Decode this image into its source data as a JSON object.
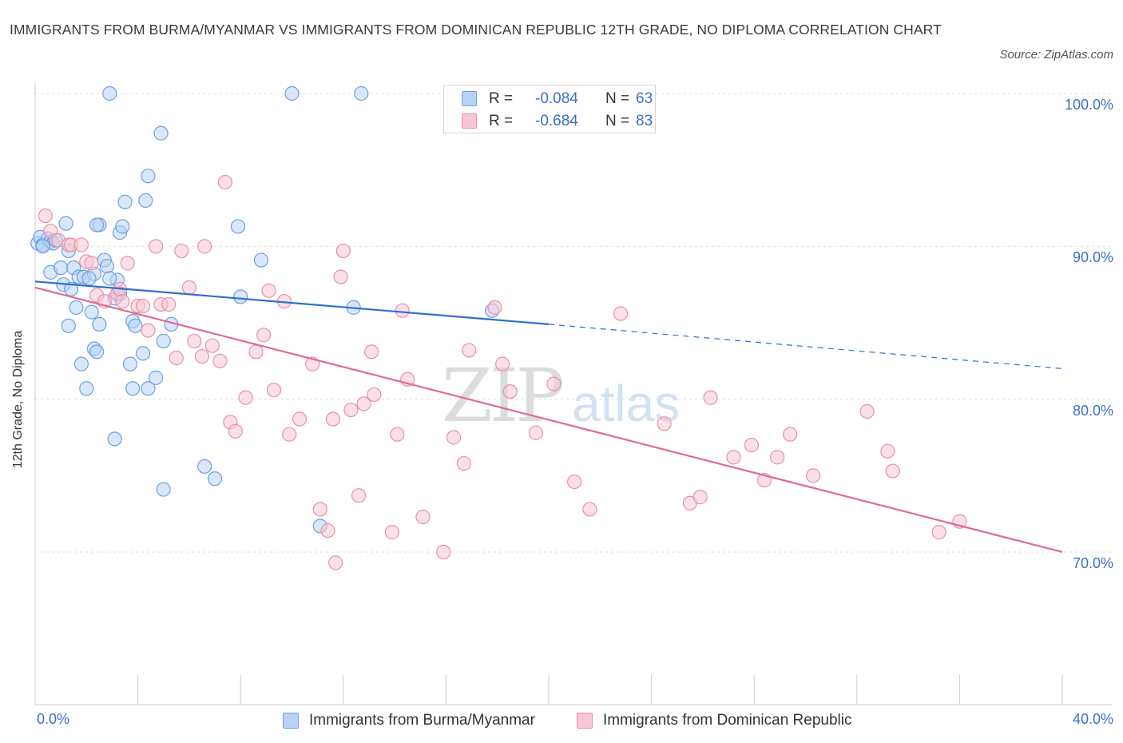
{
  "title": "IMMIGRANTS FROM BURMA/MYANMAR VS IMMIGRANTS FROM DOMINICAN REPUBLIC 12TH GRADE, NO DIPLOMA CORRELATION CHART",
  "source": "Source: ZipAtlas.com",
  "watermark": {
    "zip": "ZIP",
    "atlas": "atlas"
  },
  "legend": {
    "rows": [
      {
        "r_label": "R =",
        "r_value": "-0.084",
        "n_label": "N =",
        "n_value": "63",
        "fill": "#b8d3f5",
        "stroke": "#6e9fe0"
      },
      {
        "r_label": "R =",
        "r_value": "-0.684",
        "n_label": "N =",
        "n_value": "83",
        "fill": "#f8c6d4",
        "stroke": "#e890aa"
      }
    ]
  },
  "bottom_legend": [
    {
      "label": "Immigrants from Burma/Myanmar",
      "fill": "#b8d3f5",
      "stroke": "#6e9fe0"
    },
    {
      "label": "Immigrants from Dominican Republic",
      "fill": "#f8c6d4",
      "stroke": "#e890aa"
    }
  ],
  "chart_data": {
    "type": "scatter",
    "title": "IMMIGRANTS FROM BURMA/MYANMAR VS IMMIGRANTS FROM DOMINICAN REPUBLIC 12TH GRADE, NO DIPLOMA CORRELATION CHART",
    "xlabel": "",
    "ylabel": "12th Grade, No Diploma",
    "xlim": [
      0,
      40
    ],
    "ylim": [
      60,
      100
    ],
    "x_tick_labels": [
      {
        "value": 0,
        "label": "0.0%"
      },
      {
        "value": 40,
        "label": "40.0%"
      }
    ],
    "y_tick_labels": [
      {
        "value": 100,
        "label": "100.0%"
      },
      {
        "value": 90,
        "label": "90.0%"
      },
      {
        "value": 80,
        "label": "80.0%"
      },
      {
        "value": 70,
        "label": "70.0%"
      }
    ],
    "grid": "horizontal dashed",
    "legend_position": "top-center",
    "series": [
      {
        "name": "Immigrants from Burma/Myanmar",
        "color": "#6e9fe0",
        "fill": "#b8d3f5",
        "line_color": "#2f6fce",
        "trend": {
          "x0": 0,
          "y0": 87.7,
          "x1": 20,
          "y1": 84.9,
          "dashed_to_x": 40,
          "dashed_to_y": 82.0
        },
        "points": [
          [
            0.1,
            90.2
          ],
          [
            0.2,
            90.6
          ],
          [
            0.3,
            90.1
          ],
          [
            0.5,
            90.5
          ],
          [
            0.6,
            90.3
          ],
          [
            0.7,
            90.2
          ],
          [
            0.8,
            90.4
          ],
          [
            0.6,
            88.3
          ],
          [
            1.2,
            91.5
          ],
          [
            1.3,
            89.7
          ],
          [
            1.0,
            88.6
          ],
          [
            1.5,
            88.6
          ],
          [
            1.1,
            87.5
          ],
          [
            1.4,
            87.2
          ],
          [
            1.7,
            88.0
          ],
          [
            1.9,
            88.0
          ],
          [
            2.3,
            88.2
          ],
          [
            2.1,
            87.9
          ],
          [
            2.5,
            91.4
          ],
          [
            2.4,
            91.4
          ],
          [
            2.7,
            89.1
          ],
          [
            2.8,
            88.7
          ],
          [
            3.2,
            87.8
          ],
          [
            2.9,
            87.9
          ],
          [
            3.3,
            86.9
          ],
          [
            3.1,
            86.6
          ],
          [
            2.2,
            85.7
          ],
          [
            1.3,
            84.8
          ],
          [
            2.5,
            84.9
          ],
          [
            2.3,
            83.3
          ],
          [
            2.4,
            83.1
          ],
          [
            1.8,
            82.3
          ],
          [
            2.0,
            80.7
          ],
          [
            3.8,
            85.1
          ],
          [
            3.9,
            84.8
          ],
          [
            4.2,
            83.0
          ],
          [
            3.7,
            82.3
          ],
          [
            3.8,
            80.7
          ],
          [
            4.4,
            80.7
          ],
          [
            4.7,
            81.4
          ],
          [
            5.0,
            83.8
          ],
          [
            5.3,
            84.9
          ],
          [
            4.3,
            93.0
          ],
          [
            4.4,
            94.6
          ],
          [
            4.9,
            97.4
          ],
          [
            3.5,
            92.9
          ],
          [
            3.3,
            90.9
          ],
          [
            3.4,
            91.3
          ],
          [
            2.9,
            100.0
          ],
          [
            10.0,
            100.0
          ],
          [
            12.7,
            100.0
          ],
          [
            7.9,
            91.3
          ],
          [
            8.8,
            89.1
          ],
          [
            8.0,
            86.7
          ],
          [
            12.4,
            86.0
          ],
          [
            17.8,
            85.8
          ],
          [
            3.1,
            77.4
          ],
          [
            5.0,
            74.1
          ],
          [
            6.6,
            75.6
          ],
          [
            7.0,
            74.8
          ],
          [
            11.1,
            71.7
          ],
          [
            0.3,
            90.0
          ],
          [
            1.6,
            86.0
          ]
        ]
      },
      {
        "name": "Immigrants from Dominican Republic",
        "color": "#e890aa",
        "fill": "#f8c6d4",
        "line_color": "#df6b92",
        "trend": {
          "x0": 0,
          "y0": 87.3,
          "x1": 40,
          "y1": 70.0
        },
        "points": [
          [
            0.4,
            92.0
          ],
          [
            0.6,
            91.0
          ],
          [
            0.9,
            90.4
          ],
          [
            1.3,
            90.1
          ],
          [
            1.4,
            90.1
          ],
          [
            2.0,
            89.0
          ],
          [
            2.2,
            88.9
          ],
          [
            3.6,
            88.9
          ],
          [
            2.4,
            86.8
          ],
          [
            2.7,
            86.4
          ],
          [
            3.2,
            86.9
          ],
          [
            3.3,
            87.2
          ],
          [
            4.0,
            86.1
          ],
          [
            4.2,
            86.1
          ],
          [
            4.9,
            86.2
          ],
          [
            5.2,
            86.2
          ],
          [
            6.0,
            87.3
          ],
          [
            5.7,
            89.7
          ],
          [
            4.7,
            90.0
          ],
          [
            6.6,
            90.0
          ],
          [
            7.4,
            94.2
          ],
          [
            4.4,
            84.5
          ],
          [
            5.5,
            82.7
          ],
          [
            6.2,
            83.8
          ],
          [
            6.5,
            82.8
          ],
          [
            6.9,
            83.5
          ],
          [
            7.2,
            82.5
          ],
          [
            7.6,
            78.5
          ],
          [
            7.8,
            77.9
          ],
          [
            8.2,
            80.1
          ],
          [
            8.6,
            83.1
          ],
          [
            8.9,
            84.2
          ],
          [
            9.1,
            87.1
          ],
          [
            9.7,
            86.4
          ],
          [
            9.3,
            80.6
          ],
          [
            9.9,
            77.7
          ],
          [
            10.3,
            78.7
          ],
          [
            10.8,
            82.3
          ],
          [
            11.1,
            72.8
          ],
          [
            11.4,
            71.4
          ],
          [
            11.6,
            78.7
          ],
          [
            12.0,
            89.7
          ],
          [
            11.9,
            88.0
          ],
          [
            12.3,
            79.3
          ],
          [
            12.6,
            73.7
          ],
          [
            12.8,
            79.7
          ],
          [
            13.2,
            80.3
          ],
          [
            13.1,
            83.1
          ],
          [
            13.9,
            71.3
          ],
          [
            14.1,
            77.7
          ],
          [
            14.5,
            81.3
          ],
          [
            14.3,
            85.8
          ],
          [
            15.1,
            72.3
          ],
          [
            15.9,
            70.0
          ],
          [
            16.3,
            77.5
          ],
          [
            16.7,
            75.8
          ],
          [
            16.9,
            83.2
          ],
          [
            17.9,
            86.0
          ],
          [
            18.2,
            82.3
          ],
          [
            18.5,
            80.5
          ],
          [
            19.5,
            77.8
          ],
          [
            20.2,
            81.0
          ],
          [
            21.0,
            74.6
          ],
          [
            21.6,
            72.8
          ],
          [
            22.8,
            85.6
          ],
          [
            24.5,
            78.4
          ],
          [
            25.5,
            73.2
          ],
          [
            25.9,
            73.6
          ],
          [
            26.3,
            80.1
          ],
          [
            27.2,
            76.2
          ],
          [
            27.9,
            77.0
          ],
          [
            28.4,
            74.7
          ],
          [
            28.9,
            76.2
          ],
          [
            29.4,
            77.7
          ],
          [
            30.3,
            75.0
          ],
          [
            32.4,
            79.2
          ],
          [
            33.2,
            76.6
          ],
          [
            33.4,
            75.3
          ],
          [
            35.2,
            71.3
          ],
          [
            36.0,
            72.0
          ],
          [
            11.7,
            69.3
          ],
          [
            1.8,
            90.1
          ],
          [
            3.4,
            86.4
          ]
        ]
      }
    ]
  }
}
